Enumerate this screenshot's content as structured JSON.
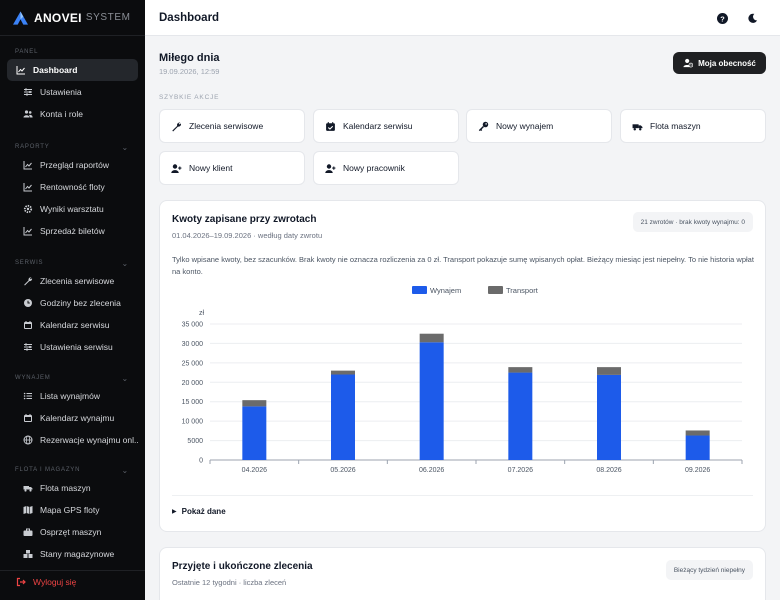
{
  "brand": {
    "name": "ANOVEI",
    "sub": "SYSTEM"
  },
  "sidebar": {
    "sections": [
      {
        "title": "Panel",
        "items": [
          {
            "label": "Dashboard",
            "icon": "chart-line-icon",
            "active": true
          },
          {
            "label": "Ustawienia",
            "icon": "sliders-icon"
          },
          {
            "label": "Konta i role",
            "icon": "users-icon"
          }
        ]
      },
      {
        "title": "Raporty",
        "items": [
          {
            "label": "Przegląd raportów",
            "icon": "chart-line-icon"
          },
          {
            "label": "Rentowność floty",
            "icon": "chart-line-icon"
          },
          {
            "label": "Wyniki warsztatu",
            "icon": "gear-icon"
          },
          {
            "label": "Sprzedaż biletów",
            "icon": "chart-line-icon"
          }
        ]
      },
      {
        "title": "Serwis",
        "items": [
          {
            "label": "Zlecenia serwisowe",
            "icon": "wrench-icon"
          },
          {
            "label": "Godziny bez zlecenia",
            "icon": "clock-icon"
          },
          {
            "label": "Kalendarz serwisu",
            "icon": "calendar-icon"
          },
          {
            "label": "Ustawienia serwisu",
            "icon": "sliders-icon"
          }
        ]
      },
      {
        "title": "Wynajem",
        "items": [
          {
            "label": "Lista wynajmów",
            "icon": "list-icon"
          },
          {
            "label": "Kalendarz wynajmu",
            "icon": "calendar-icon"
          },
          {
            "label": "Rezerwacje wynajmu onl...",
            "icon": "globe-icon"
          }
        ]
      },
      {
        "title": "Flota i magazyn",
        "items": [
          {
            "label": "Flota maszyn",
            "icon": "truck-icon"
          },
          {
            "label": "Mapa GPS floty",
            "icon": "map-icon"
          },
          {
            "label": "Osprzęt maszyn",
            "icon": "toolbox-icon"
          },
          {
            "label": "Stany magazynowe",
            "icon": "boxes-icon"
          }
        ]
      }
    ],
    "logout": "Wyloguj się"
  },
  "topbar": {
    "title": "Dashboard"
  },
  "main": {
    "greeting": "Miłego dnia",
    "datetime": "19.09.2026, 12:59",
    "presence_button": "Moja obecność",
    "quick_actions_title": "SZYBKIE AKCJE",
    "quick_actions": [
      {
        "label": "Zlecenia serwisowe",
        "icon": "wrench-icon"
      },
      {
        "label": "Kalendarz serwisu",
        "icon": "calendar-check-icon"
      },
      {
        "label": "Nowy wynajem",
        "icon": "key-icon"
      },
      {
        "label": "Flota maszyn",
        "icon": "truck-icon"
      },
      {
        "label": "Nowy klient",
        "icon": "user-plus-icon"
      },
      {
        "label": "Nowy pracownik",
        "icon": "user-plus-icon"
      }
    ],
    "returns_card": {
      "title": "Kwoty zapisane przy zwrotach",
      "subtitle": "01.04.2026–19.09.2026 · według daty zwrotu",
      "badge": "21 zwrotów · brak kwoty wynajmu: 0",
      "note": "Tylko wpisane kwoty, bez szacunków. Brak kwoty nie oznacza rozliczenia za 0 zł. Transport pokazuje sumę wpisanych opłat. Bieżący miesiąc jest niepełny. To nie historia wpłat na konto.",
      "toggle": "Pokaż dane"
    },
    "orders_card": {
      "title": "Przyjęte i ukończone zlecenia",
      "subtitle": "Ostatnie 12 tygodni · liczba zleceń",
      "badge": "Bieżący tydzień niepełny"
    }
  },
  "chart_data": {
    "type": "bar",
    "stacked": true,
    "categories": [
      "04.2026",
      "05.2026",
      "06.2026",
      "07.2026",
      "08.2026",
      "09.2026"
    ],
    "series": [
      {
        "name": "Wynajem",
        "color": "#1d5bea",
        "values": [
          13800,
          22000,
          30300,
          22500,
          21900,
          6300
        ]
      },
      {
        "name": "Transport",
        "color": "#6b6b6b",
        "values": [
          1600,
          1000,
          2200,
          1400,
          2000,
          1300
        ]
      }
    ],
    "ylabel": "zł",
    "ylim": [
      0,
      35000
    ],
    "yticks": [
      0,
      5000,
      10000,
      15000,
      20000,
      25000,
      30000,
      35000
    ],
    "ytick_labels": [
      "0",
      "5000",
      "10 000",
      "15 000",
      "20 000",
      "25 000",
      "30 000",
      "35 000"
    ],
    "legend": "top-center",
    "grid": true
  }
}
